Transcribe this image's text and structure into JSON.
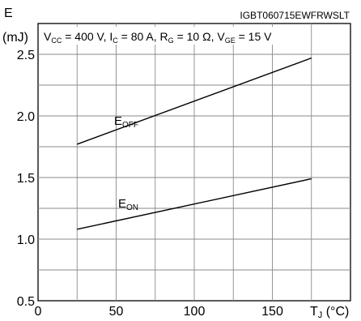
{
  "header": {
    "y_title_symbol": "E",
    "y_title_unit": "(mJ)",
    "part_number": "IGBT060715EWFRWSLT"
  },
  "conditions": {
    "vcc_symbol": "V",
    "vcc_sub": "CC",
    "vcc_value": " = 400 V, ",
    "ic_symbol": "I",
    "ic_sub": "C",
    "ic_value": " = 80 A, ",
    "rg_symbol": "R",
    "rg_sub": "G",
    "rg_value": " = 10 Ω, ",
    "vge_symbol": "V",
    "vge_sub": "GE",
    "vge_value": " = 15 V"
  },
  "x_title": {
    "symbol": "T",
    "sub": "J",
    "unit": " (°C)"
  },
  "chart_data": {
    "type": "line",
    "xlim": [
      0,
      200
    ],
    "ylim": [
      0.5,
      2.75
    ],
    "x_ticks": [
      0,
      50,
      100,
      150
    ],
    "x_tick_labels": [
      "0",
      "50",
      "100",
      "150"
    ],
    "y_ticks": [
      0.5,
      1.0,
      1.5,
      2.0,
      2.5
    ],
    "y_tick_labels": [
      "0.5",
      "1.0",
      "1.5",
      "2.0",
      "2.5"
    ],
    "grid": true,
    "series": [
      {
        "name": "E_OFF",
        "label_main": "E",
        "label_sub": "OFF",
        "x": [
          25,
          175
        ],
        "y": [
          1.77,
          2.47
        ]
      },
      {
        "name": "E_ON",
        "label_main": "E",
        "label_sub": "ON",
        "x": [
          25,
          175
        ],
        "y": [
          1.08,
          1.49
        ]
      }
    ]
  }
}
